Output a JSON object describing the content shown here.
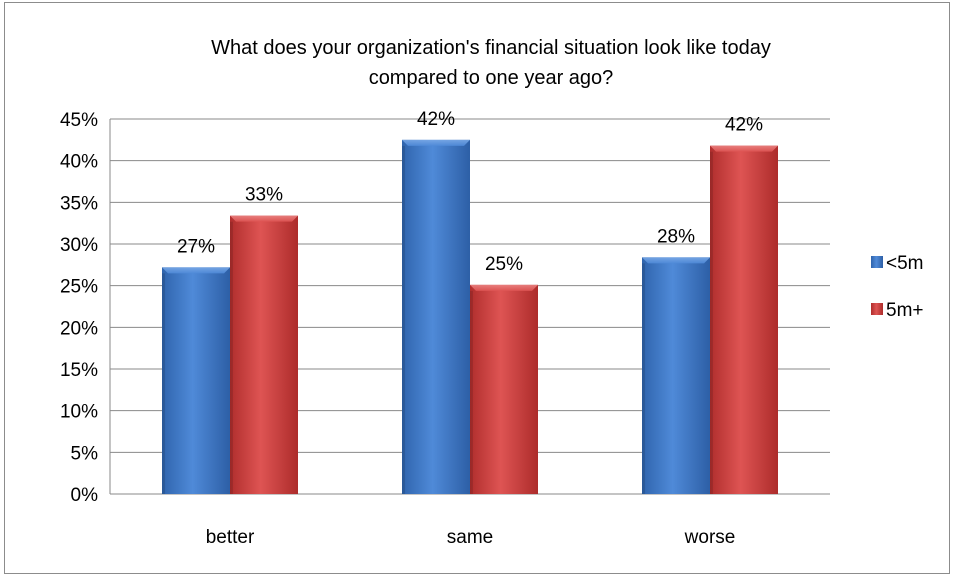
{
  "chart_data": {
    "type": "bar",
    "title": "What does your organization's financial situation look like today compared to one year ago?",
    "title_lines": [
      "What does your organization's financial situation look like today",
      "compared to one year ago?"
    ],
    "categories": [
      "better",
      "same",
      "worse"
    ],
    "series": [
      {
        "name": "<5m",
        "values": [
          27.2,
          42.5,
          28.4
        ],
        "labels": [
          "27%",
          "42%",
          "28%"
        ],
        "color": "#3a75c4"
      },
      {
        "name": "5m+",
        "values": [
          33.4,
          25.1,
          41.8
        ],
        "labels": [
          "33%",
          "25%",
          "42%"
        ],
        "color": "#cc3b3a"
      }
    ],
    "ylim": [
      0,
      45
    ],
    "ytick_step": 5,
    "ytick_labels": [
      "0%",
      "5%",
      "10%",
      "15%",
      "20%",
      "25%",
      "30%",
      "35%",
      "40%",
      "45%"
    ],
    "xlabel": "",
    "ylabel": "",
    "grid": true,
    "legend_position": "right"
  }
}
